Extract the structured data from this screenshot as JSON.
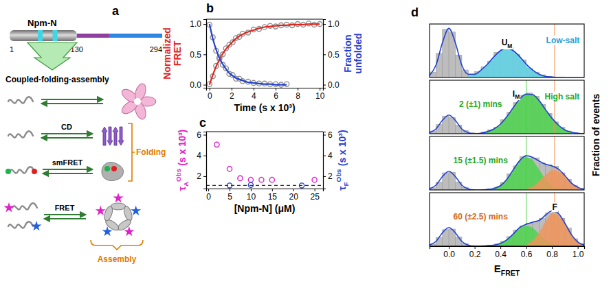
{
  "diagram": {
    "letter": "a",
    "protein": "Npm-N",
    "residues": [
      1,
      130,
      294
    ],
    "process": "Coupled-folding-assembly",
    "methods": [
      "CD",
      "smFRET",
      "FRET"
    ],
    "labels": [
      "Folding",
      "Assembly"
    ]
  },
  "chart_data": [
    {
      "type": "line",
      "letter": "b",
      "x_label": "Time (s x 10³)",
      "y_label": {
        "text": "Normalized FRET",
        "color": "#e3241c"
      },
      "y2_label": {
        "text": "Fraction unfolded",
        "color": "#1f3fcf"
      },
      "xlim": [
        -0.3,
        10.3
      ],
      "xticks": [
        0,
        2,
        4,
        6,
        8,
        10
      ],
      "ylim": [
        -0.05,
        1.08
      ],
      "yticks": [
        {
          "value": 0,
          "label": "0.0"
        },
        0.5,
        {
          "value": 1,
          "label": "1.0"
        }
      ],
      "y2lim": [
        -0.05,
        1.08
      ],
      "y2ticks": [
        {
          "value": 0,
          "label": "0.0"
        },
        0.5,
        {
          "value": 1,
          "label": "1.0"
        }
      ],
      "series": [
        {
          "type": "scatter",
          "marker": "circle-open",
          "color": "#8c8c8c",
          "x": [
            0,
            0.3,
            0.6,
            0.9,
            1.2,
            1.5,
            1.8,
            2.1,
            2.4,
            2.7,
            3,
            3.5,
            4,
            4.5,
            5,
            5.5,
            6,
            6.5,
            7,
            7.5,
            8,
            8.5,
            9,
            9.5,
            10
          ],
          "values": [
            0.01,
            0.14,
            0.31,
            0.43,
            0.5,
            0.6,
            0.66,
            0.7,
            0.77,
            0.79,
            0.84,
            0.86,
            0.91,
            0.92,
            0.95,
            0.97,
            0.96,
            0.98,
            0.99,
            0.98,
            1,
            0.99,
            1.01,
            0.99,
            1
          ]
        },
        {
          "type": "line",
          "color": "#e3241c",
          "x": [
            0,
            0.3,
            0.6,
            0.9,
            1.2,
            1.5,
            1.8,
            2.1,
            2.4,
            2.7,
            3,
            3.5,
            4,
            4.5,
            5,
            5.5,
            6,
            6.5,
            7,
            7.5,
            8,
            8.5,
            9,
            9.5,
            10
          ],
          "values": [
            0,
            0.16,
            0.3,
            0.41,
            0.51,
            0.59,
            0.65,
            0.71,
            0.76,
            0.8,
            0.83,
            0.87,
            0.9,
            0.93,
            0.95,
            0.96,
            0.97,
            0.98,
            0.98,
            0.99,
            0.99,
            0.99,
            1,
            1,
            1
          ]
        },
        {
          "type": "scatter",
          "marker": "circle-open",
          "color": "#8c8c8c",
          "axis": "y2",
          "x": [
            0,
            0.3,
            0.6,
            0.9,
            1.2,
            1.5,
            1.8,
            2.1,
            2.4,
            2.7,
            3,
            3.5,
            4,
            4.5,
            5,
            5.5,
            6,
            6.5,
            7
          ],
          "values": [
            0.99,
            0.78,
            0.56,
            0.45,
            0.33,
            0.27,
            0.18,
            0.16,
            0.1,
            0.1,
            0.06,
            0.05,
            0.03,
            0.02,
            0.02,
            0.01,
            0.01,
            0,
            0.01
          ]
        },
        {
          "type": "line",
          "color": "#1f3fcf",
          "axis": "y2",
          "x": [
            0,
            0.3,
            0.6,
            0.9,
            1.2,
            1.5,
            1.8,
            2.1,
            2.4,
            2.7,
            3,
            3.5,
            4,
            4.5,
            5,
            5.5,
            6,
            6.5,
            7
          ],
          "values": [
            1,
            0.76,
            0.58,
            0.44,
            0.34,
            0.26,
            0.19,
            0.15,
            0.11,
            0.09,
            0.07,
            0.04,
            0.03,
            0.02,
            0.01,
            0.01,
            0,
            0,
            0
          ]
        }
      ]
    },
    {
      "type": "scatter",
      "letter": "c",
      "x_label": "[Npm-N] (μM)",
      "y_label": {
        "symbol": "τ",
        "sub": "A",
        "sup": "Obs",
        "unit": "(s x 10³)",
        "color": "#e020c8"
      },
      "y2_label": {
        "symbol": "τ",
        "sub": "F",
        "sup": "Obs",
        "unit": "(s x 10³)",
        "color": "#1f3fcf"
      },
      "xlim": [
        -0.5,
        27
      ],
      "xticks": [
        0,
        5,
        10,
        15,
        20,
        25
      ],
      "ylim": [
        0.8,
        6.3
      ],
      "yticks": [
        2,
        4,
        6
      ],
      "y2lim": [
        0.8,
        6.3
      ],
      "y2ticks": [
        2,
        4,
        6
      ],
      "series": [
        {
          "type": "scatter",
          "marker": "circle-open",
          "color": "#e020c8",
          "x": [
            2,
            5,
            7.5,
            10,
            12.5,
            15,
            25
          ],
          "values": [
            5.05,
            2.7,
            1.8,
            1.65,
            1.65,
            1.65,
            1.65
          ]
        },
        {
          "type": "scatter",
          "marker": "circle-open",
          "color": "#1f3fcf",
          "axis": "y2",
          "x": [
            5,
            10,
            22
          ],
          "values": [
            1.1,
            1.15,
            1.1
          ]
        },
        {
          "type": "line",
          "line_style": "dashed",
          "color": "#333333",
          "axis": "y2",
          "x": [
            -0.5,
            27
          ],
          "values": [
            1.1,
            1.1
          ]
        }
      ]
    },
    {
      "type": "histogram",
      "letter": "d",
      "x_label": {
        "symbol": "E",
        "sub": "FRET"
      },
      "y_label": "Fraction of events",
      "tick_labels": "x",
      "xlim": [
        -0.15,
        1.05
      ],
      "xticks": [
        {
          "value": 0,
          "label": "0.0"
        },
        0.2,
        0.4,
        0.6,
        0.8,
        {
          "value": 1,
          "label": "1.0"
        }
      ],
      "ylim": [
        0,
        1
      ],
      "bins": [
        -0.15,
        -0.1,
        -0.05,
        0,
        0.05,
        0.1,
        0.15,
        0.2,
        0.25,
        0.3,
        0.35,
        0.4,
        0.45,
        0.5,
        0.55,
        0.6,
        0.65,
        0.7,
        0.75,
        0.8,
        0.85,
        0.9,
        0.95,
        1,
        1.05
      ],
      "fit_x": [
        -0.15,
        -0.1,
        -0.05,
        0,
        0.05,
        0.1,
        0.15,
        0.2,
        0.25,
        0.3,
        0.35,
        0.4,
        0.45,
        0.5,
        0.55,
        0.6,
        0.65,
        0.7,
        0.75,
        0.8,
        0.85,
        0.9,
        0.95,
        1,
        1.05
      ],
      "panels": [
        {
          "color": "#bdbdbd",
          "counts": [
            0.1,
            0.45,
            0.9,
            0.85,
            0.42,
            0.14,
            0.06,
            0.11,
            0.2,
            0.3,
            0.47,
            0.52,
            0.56,
            0.43,
            0.33,
            0.17,
            0.1,
            0.05,
            0.02,
            0.01,
            0.01,
            0,
            0,
            0
          ],
          "fit": {
            "color": "#1f3fcf",
            "values": [
              0.04,
              0.23,
              0.65,
              0.92,
              0.65,
              0.23,
              0.06,
              0.06,
              0.14,
              0.25,
              0.39,
              0.5,
              0.55,
              0.5,
              0.39,
              0.25,
              0.14,
              0.06,
              0.02,
              0.01,
              0,
              0,
              0,
              0,
              0
            ]
          },
          "components": [
            {
              "color": "#5fd3e6",
              "values": [
                0,
                0,
                0,
                0,
                0,
                0,
                0.02,
                0.06,
                0.14,
                0.25,
                0.39,
                0.5,
                0.55,
                0.5,
                0.39,
                0.25,
                0.14,
                0.06,
                0.02,
                0.01,
                0,
                0,
                0,
                0,
                0
              ]
            }
          ],
          "reference_lines": [
            {
              "value": 0.82,
              "color": "#f0955a"
            }
          ],
          "annotations": [
            {
              "text": {
                "symbol": "U",
                "sub": "M"
              },
              "color": "#000000"
            },
            {
              "text": "Low-salt",
              "color": "#1e9fd6"
            }
          ]
        },
        {
          "color": "#bdbdbd",
          "counts": [
            0.05,
            0.17,
            0.33,
            0.3,
            0.16,
            0.06,
            0.02,
            0.01,
            0.03,
            0.07,
            0.12,
            0.26,
            0.4,
            0.58,
            0.72,
            0.76,
            0.7,
            0.55,
            0.38,
            0.22,
            0.12,
            0.05,
            0.02,
            0.01
          ],
          "fit": {
            "color": "#1f3fcf",
            "values": [
              0.02,
              0.09,
              0.25,
              0.35,
              0.25,
              0.09,
              0.02,
              0,
              0.01,
              0.04,
              0.09,
              0.18,
              0.32,
              0.49,
              0.65,
              0.74,
              0.73,
              0.62,
              0.45,
              0.29,
              0.16,
              0.07,
              0.03,
              0.01,
              0
            ]
          },
          "components": [
            {
              "color": "#4cd34c",
              "values": [
                0,
                0,
                0,
                0,
                0,
                0,
                0,
                0,
                0.01,
                0.04,
                0.09,
                0.18,
                0.32,
                0.49,
                0.65,
                0.74,
                0.73,
                0.62,
                0.45,
                0.29,
                0.16,
                0.07,
                0.03,
                0.01,
                0
              ]
            }
          ],
          "reference_lines": [
            {
              "value": 0.6,
              "color": "#4cd34c"
            },
            {
              "value": 0.82,
              "color": "#f0955a"
            }
          ],
          "annotations": [
            {
              "text": "2 (±1) mins",
              "color": "#26a826"
            },
            {
              "text": {
                "symbol": "I",
                "sub": "M"
              },
              "color": "#000000"
            },
            {
              "text": "High salt",
              "color": "#26a826"
            }
          ]
        },
        {
          "color": "#bdbdbd",
          "counts": [
            0.04,
            0.15,
            0.32,
            0.33,
            0.15,
            0.05,
            0.01,
            0,
            0.01,
            0.02,
            0.05,
            0.14,
            0.3,
            0.45,
            0.62,
            0.6,
            0.6,
            0.5,
            0.47,
            0.44,
            0.32,
            0.2,
            0.08,
            0.03
          ],
          "fit": {
            "color": "#1f3fcf",
            "values": [
              0.02,
              0.09,
              0.25,
              0.35,
              0.25,
              0.09,
              0.02,
              0,
              0,
              0.01,
              0.03,
              0.08,
              0.2,
              0.38,
              0.55,
              0.64,
              0.61,
              0.54,
              0.48,
              0.45,
              0.39,
              0.27,
              0.13,
              0.05,
              0.01
            ]
          },
          "components": [
            {
              "color": "#4cd34c",
              "values": [
                0,
                0,
                0,
                0,
                0,
                0,
                0,
                0,
                0,
                0.01,
                0.03,
                0.08,
                0.2,
                0.38,
                0.55,
                0.62,
                0.55,
                0.38,
                0.2,
                0.08,
                0.03,
                0.01,
                0,
                0,
                0
              ]
            },
            {
              "color": "#f0955a",
              "values": [
                0,
                0,
                0,
                0,
                0,
                0,
                0,
                0,
                0,
                0,
                0,
                0,
                0,
                0,
                0,
                0.02,
                0.06,
                0.16,
                0.28,
                0.37,
                0.36,
                0.26,
                0.13,
                0.05,
                0.01
              ]
            }
          ],
          "reference_lines": [
            {
              "value": 0.6,
              "color": "#4cd34c"
            },
            {
              "value": 0.82,
              "color": "#f0955a"
            }
          ],
          "annotations": [
            {
              "text": "15 (±1.5) mins",
              "color": "#26a826"
            }
          ]
        },
        {
          "color": "#bdbdbd",
          "counts": [
            0.04,
            0.16,
            0.31,
            0.32,
            0.17,
            0.05,
            0.01,
            0,
            0.01,
            0.02,
            0.04,
            0.09,
            0.18,
            0.3,
            0.38,
            0.43,
            0.45,
            0.52,
            0.62,
            0.66,
            0.52,
            0.34,
            0.14,
            0.05
          ],
          "fit": {
            "color": "#1f3fcf",
            "values": [
              0.02,
              0.09,
              0.25,
              0.35,
              0.25,
              0.09,
              0.02,
              0,
              0,
              0.01,
              0.02,
              0.05,
              0.12,
              0.23,
              0.35,
              0.41,
              0.45,
              0.48,
              0.58,
              0.66,
              0.61,
              0.43,
              0.22,
              0.08,
              0.02
            ]
          },
          "components": [
            {
              "color": "#4cd34c",
              "values": [
                0,
                0,
                0,
                0,
                0,
                0,
                0,
                0,
                0,
                0.01,
                0.02,
                0.05,
                0.12,
                0.23,
                0.34,
                0.38,
                0.34,
                0.23,
                0.12,
                0.05,
                0.02,
                0.01,
                0,
                0,
                0
              ]
            },
            {
              "color": "#f0955a",
              "values": [
                0,
                0,
                0,
                0,
                0,
                0,
                0,
                0,
                0,
                0,
                0,
                0,
                0,
                0,
                0.01,
                0.03,
                0.11,
                0.25,
                0.46,
                0.61,
                0.59,
                0.42,
                0.22,
                0.08,
                0.02
              ]
            }
          ],
          "reference_lines": [
            {
              "value": 0.6,
              "color": "#4cd34c"
            },
            {
              "value": 0.82,
              "color": "#f0955a"
            }
          ],
          "annotations": [
            {
              "text": "60 (±2.5) mins",
              "color": "#d2691e"
            },
            {
              "text": "F",
              "color": "#000000"
            }
          ]
        }
      ]
    }
  ]
}
